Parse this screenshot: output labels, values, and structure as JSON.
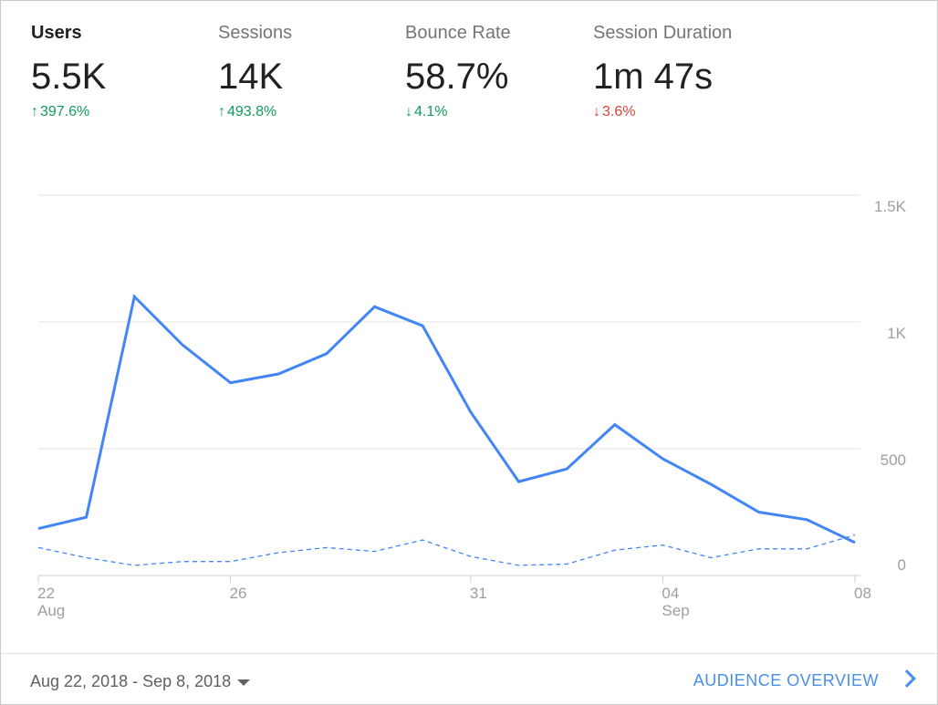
{
  "metrics": [
    {
      "title": "Users",
      "value": "5.5K",
      "change": "397.6%",
      "direction": "up",
      "sentiment": "good",
      "active": true
    },
    {
      "title": "Sessions",
      "value": "14K",
      "change": "493.8%",
      "direction": "up",
      "sentiment": "good",
      "active": false
    },
    {
      "title": "Bounce Rate",
      "value": "58.7%",
      "change": "4.1%",
      "direction": "down",
      "sentiment": "good",
      "active": false
    },
    {
      "title": "Session Duration",
      "value": "1m 47s",
      "change": "3.6%",
      "direction": "down",
      "sentiment": "bad",
      "active": false
    }
  ],
  "colors": {
    "primary_line": "#4285f4",
    "comparison_line": "#4285f4",
    "positive": "#0f9d58",
    "negative": "#db4437",
    "link": "#4a8fe7"
  },
  "chart_data": {
    "type": "line",
    "x": [
      "Aug 22",
      "Aug 23",
      "Aug 24",
      "Aug 25",
      "Aug 26",
      "Aug 27",
      "Aug 28",
      "Aug 29",
      "Aug 30",
      "Aug 31",
      "Sep 01",
      "Sep 02",
      "Sep 03",
      "Sep 04",
      "Sep 05",
      "Sep 06",
      "Sep 07",
      "Sep 08"
    ],
    "series": [
      {
        "style": "solid",
        "values": [
          185,
          230,
          1100,
          910,
          760,
          795,
          875,
          1060,
          985,
          645,
          370,
          420,
          595,
          460,
          360,
          250,
          220,
          130
        ]
      },
      {
        "style": "dashed",
        "values": [
          110,
          70,
          40,
          55,
          55,
          90,
          110,
          95,
          140,
          75,
          40,
          45,
          100,
          120,
          70,
          105,
          105,
          160
        ]
      }
    ],
    "y_ticks": [
      "0",
      "500",
      "1K",
      "1.5K"
    ],
    "y_tick_values": [
      0,
      500,
      1000,
      1500
    ],
    "x_tick_labels": [
      {
        "index": 0,
        "label": "22",
        "sub": "Aug"
      },
      {
        "index": 4,
        "label": "26",
        "sub": ""
      },
      {
        "index": 9,
        "label": "31",
        "sub": ""
      },
      {
        "index": 13,
        "label": "04",
        "sub": "Sep"
      },
      {
        "index": 17,
        "label": "08",
        "sub": ""
      }
    ],
    "ylim": [
      0,
      1500
    ],
    "grid": true,
    "y_axis_side": "right"
  },
  "footer": {
    "date_range": "Aug 22, 2018 - Sep 8, 2018",
    "link_label": "AUDIENCE OVERVIEW",
    "link_icon": "chevron-right-icon"
  }
}
